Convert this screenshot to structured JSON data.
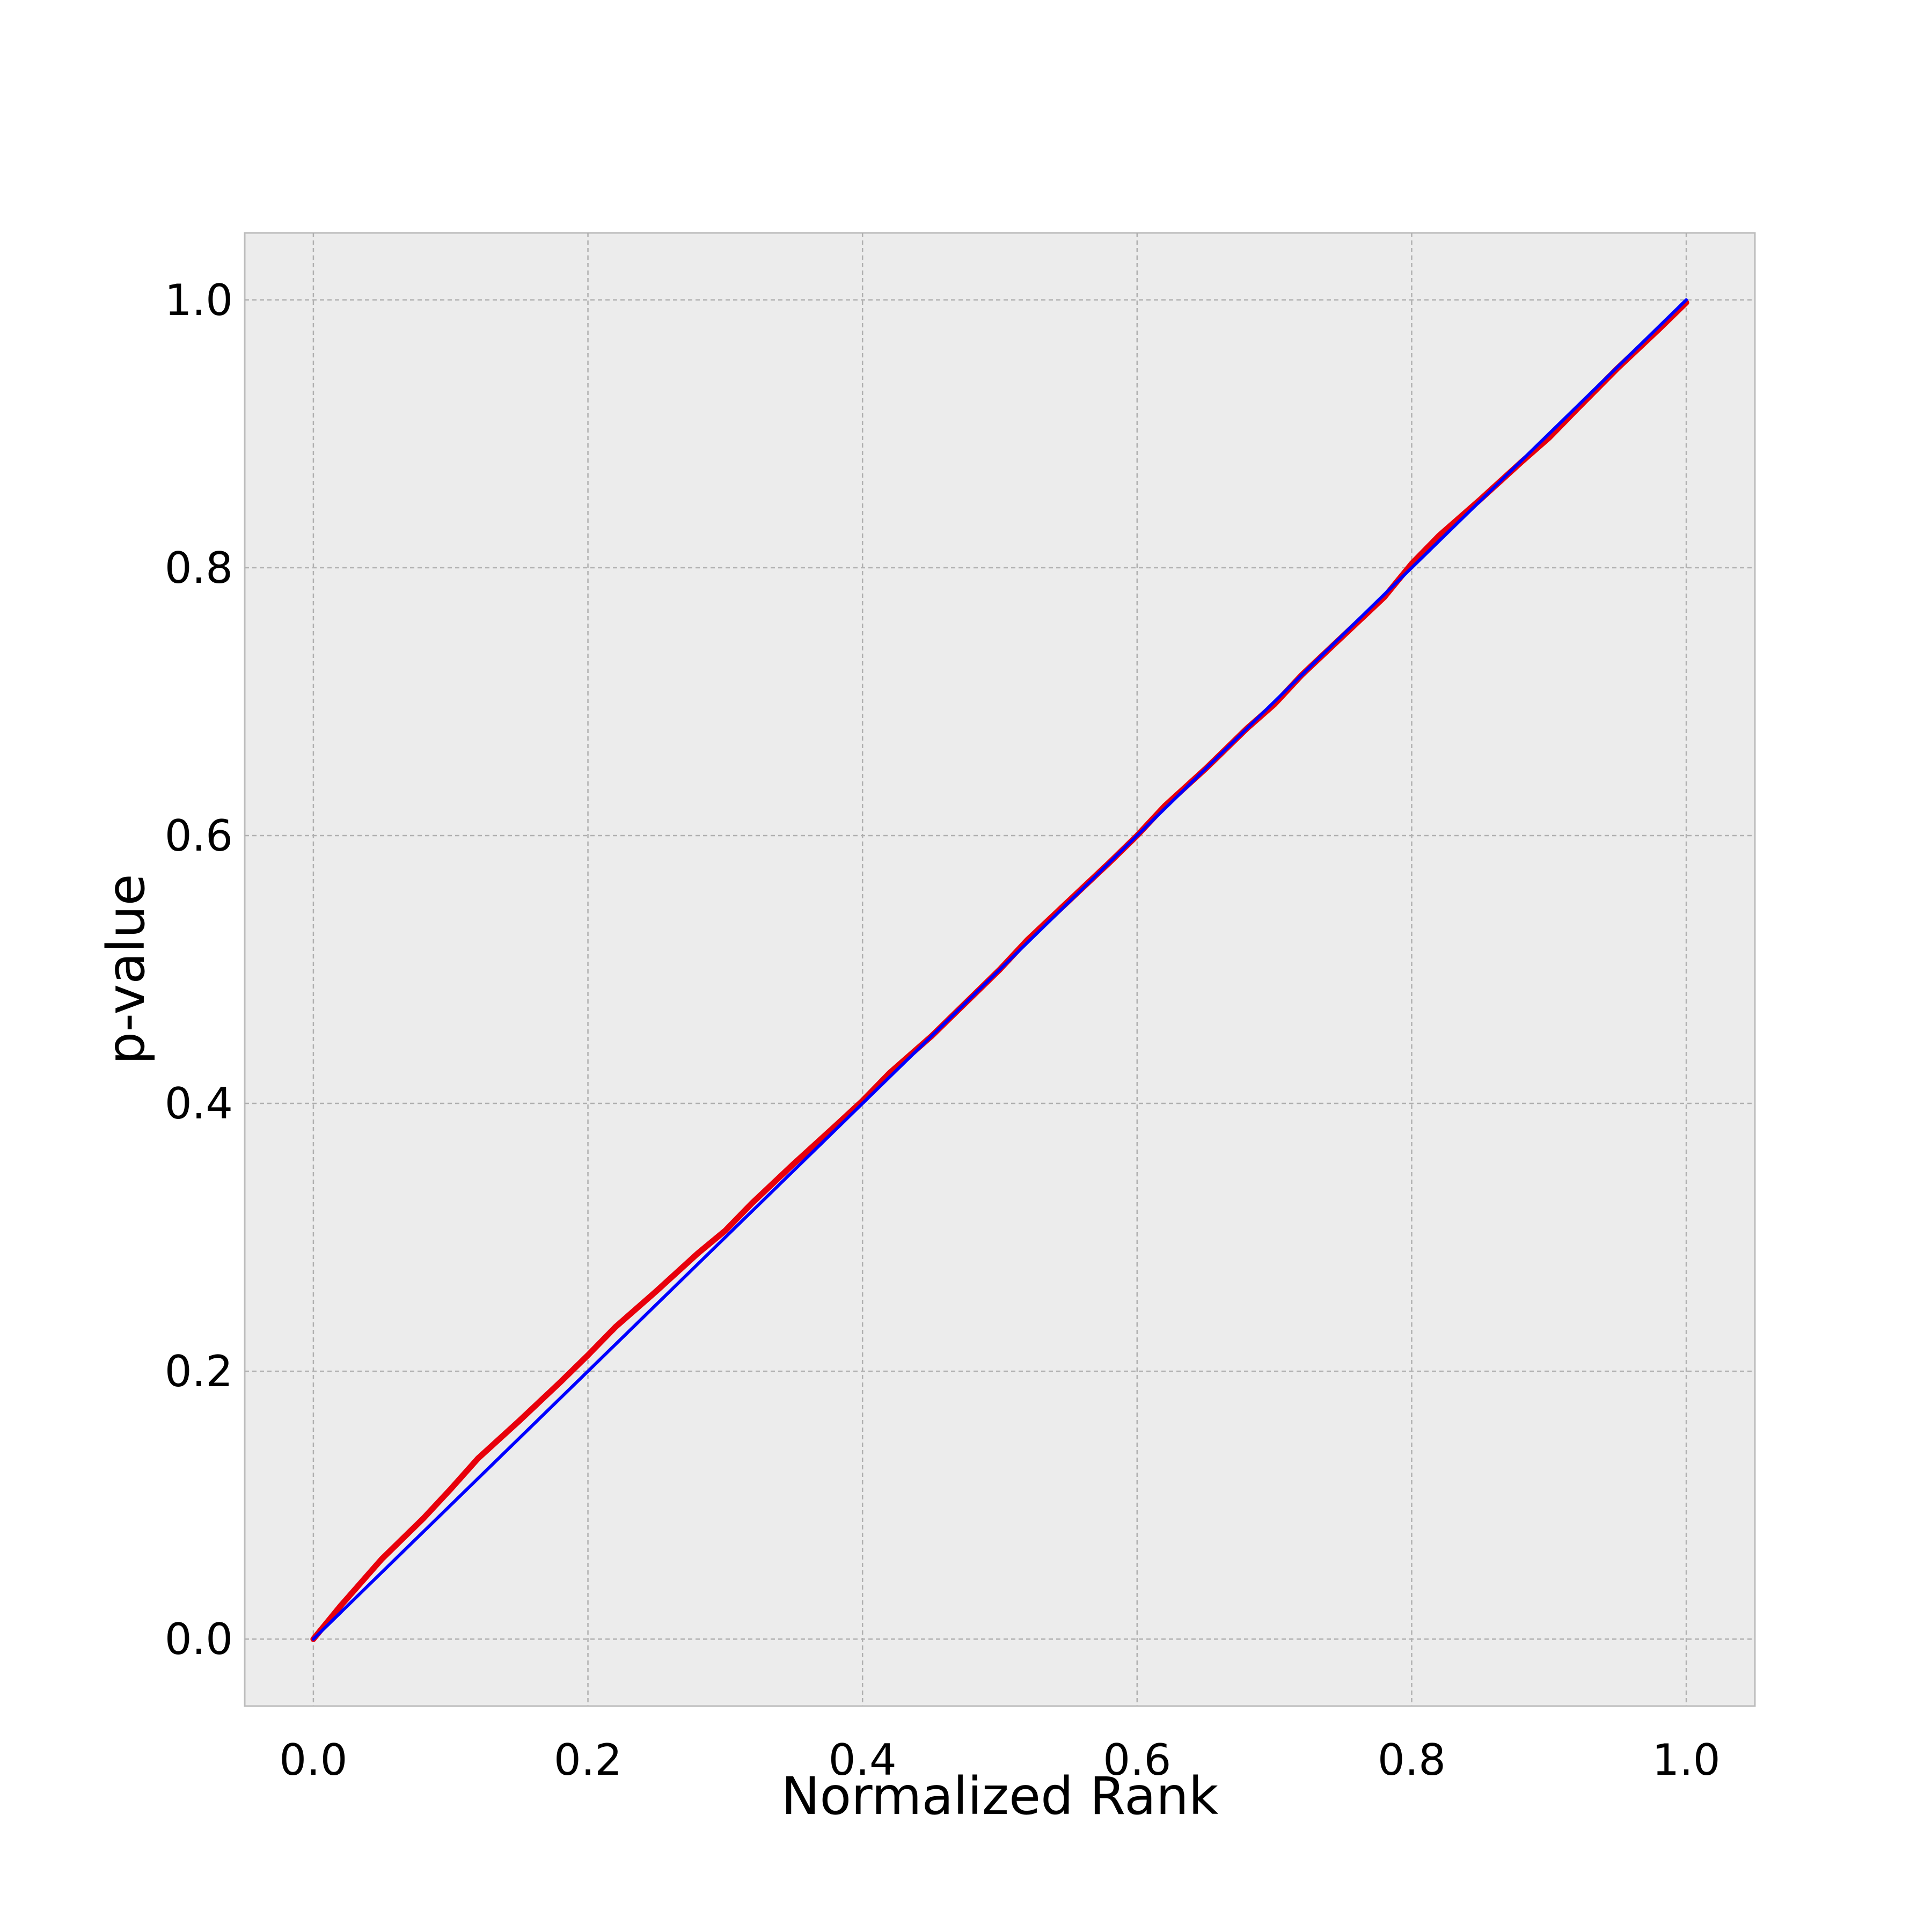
{
  "chart_data": {
    "type": "line",
    "title": "",
    "xlabel": "Normalized Rank",
    "ylabel": "p-value",
    "xlim": [
      -0.05,
      1.05
    ],
    "ylim": [
      -0.05,
      1.05
    ],
    "x_ticks": [
      "0.0",
      "0.2",
      "0.4",
      "0.6",
      "0.8",
      "1.0"
    ],
    "y_ticks": [
      "0.0",
      "0.2",
      "0.4",
      "0.6",
      "0.8",
      "1.0"
    ],
    "grid": true,
    "legend": "none",
    "background_color": "#ececec",
    "grid_color": "#b0b0b0",
    "series": [
      {
        "color": "#e8000b",
        "x": [
          0.0,
          0.02,
          0.05,
          0.08,
          0.1,
          0.12,
          0.15,
          0.18,
          0.2,
          0.22,
          0.25,
          0.28,
          0.3,
          0.32,
          0.35,
          0.38,
          0.4,
          0.42,
          0.45,
          0.48,
          0.5,
          0.52,
          0.55,
          0.58,
          0.6,
          0.62,
          0.65,
          0.68,
          0.7,
          0.72,
          0.75,
          0.78,
          0.8,
          0.82,
          0.85,
          0.88,
          0.9,
          0.92,
          0.95,
          0.98,
          1.0
        ],
        "values": [
          0.0,
          0.025,
          0.06,
          0.09,
          0.112,
          0.135,
          0.163,
          0.192,
          0.212,
          0.233,
          0.26,
          0.288,
          0.305,
          0.326,
          0.355,
          0.383,
          0.402,
          0.423,
          0.45,
          0.48,
          0.5,
          0.522,
          0.551,
          0.58,
          0.6,
          0.622,
          0.65,
          0.68,
          0.698,
          0.72,
          0.749,
          0.778,
          0.803,
          0.824,
          0.851,
          0.879,
          0.897,
          0.918,
          0.949,
          0.978,
          0.998
        ]
      },
      {
        "color": "#0000ff",
        "x": [
          0.0,
          1.0
        ],
        "values": [
          0.0,
          1.0
        ]
      }
    ]
  }
}
